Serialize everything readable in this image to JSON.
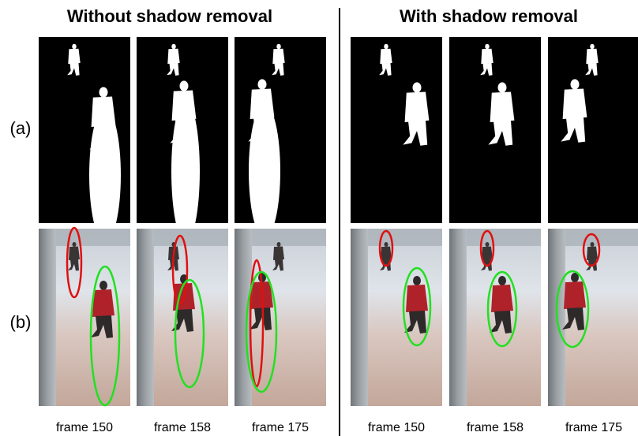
{
  "groups": [
    {
      "title": "Without shadow removal",
      "frames": [
        "frame 150",
        "frame 158",
        "frame 175"
      ]
    },
    {
      "title": "With shadow removal",
      "frames": [
        "frame 150",
        "frame 158",
        "frame 175"
      ]
    }
  ],
  "row_labels": [
    "(a)",
    "(b)"
  ]
}
